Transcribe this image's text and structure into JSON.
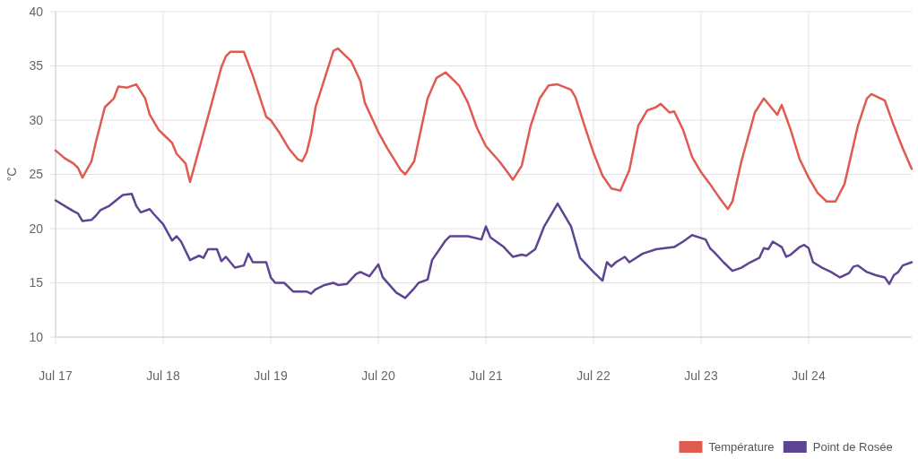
{
  "chart_data": {
    "type": "line",
    "ylabel": "°C",
    "x": [
      "--07-17T00:00",
      "--07-17T02:00",
      "--07-17T04:00",
      "--07-17T05:00",
      "--07-17T06:00",
      "--07-17T08:00",
      "--07-17T09:00",
      "--07-17T11:00",
      "--07-17T13:00",
      "--07-17T14:00",
      "--07-17T16:00",
      "--07-17T18:00",
      "--07-17T20:00",
      "--07-17T21:00",
      "--07-17T23:00",
      "--07-18T00:00",
      "--07-18T02:00",
      "--07-18T03:00",
      "--07-18T05:00",
      "--07-18T06:00",
      "--07-18T07:00",
      "--07-18T10:00",
      "--07-18T13:00",
      "--07-18T14:00",
      "--07-18T15:00",
      "--07-18T18:00",
      "--07-18T20:00",
      "--07-18T23:00",
      "--07-19T00:00",
      "--07-19T02:00",
      "--07-19T04:00",
      "--07-19T06:00",
      "--07-19T07:00",
      "--07-19T08:00",
      "--07-19T09:00",
      "--07-19T10:00",
      "--07-19T14:00",
      "--07-19T15:00",
      "--07-19T18:00",
      "--07-19T20:00",
      "--07-19T21:00",
      "--07-20T00:00",
      "--07-20T02:00",
      "--07-20T05:00",
      "--07-20T06:00",
      "--07-20T08:00",
      "--07-20T11:00",
      "--07-20T13:00",
      "--07-20T15:00",
      "--07-20T18:00",
      "--07-20T20:00",
      "--07-20T22:00",
      "--07-21T00:00",
      "--07-21T03:00",
      "--07-21T05:00",
      "--07-21T06:00",
      "--07-21T08:00",
      "--07-21T10:00",
      "--07-21T12:00",
      "--07-21T14:00",
      "--07-21T16:00",
      "--07-21T19:00",
      "--07-21T20:00",
      "--07-21T22:00",
      "--07-22T00:00",
      "--07-22T02:00",
      "--07-22T04:00",
      "--07-22T06:00",
      "--07-22T08:00",
      "--07-22T10:00",
      "--07-22T12:00",
      "--07-22T14:00",
      "--07-22T15:00",
      "--07-22T17:00",
      "--07-22T18:00",
      "--07-22T20:00",
      "--07-22T22:00",
      "--07-23T00:00",
      "--07-23T02:00",
      "--07-23T04:00",
      "--07-23T06:00",
      "--07-23T07:00",
      "--07-23T09:00",
      "--07-23T12:00",
      "--07-23T14:00",
      "--07-23T17:00",
      "--07-23T18:00",
      "--07-23T20:00",
      "--07-23T22:00",
      "--07-24T00:00",
      "--07-24T02:00",
      "--07-24T04:00",
      "--07-24T06:00",
      "--07-24T08:00",
      "--07-24T11:00",
      "--07-24T13:00",
      "--07-24T14:00",
      "--07-24T17:00",
      "--07-24T19:00",
      "--07-24T21:00",
      "--07-24T23:00"
    ],
    "series": [
      {
        "name": "Température",
        "color": "#e05a4f",
        "values": [
          27.2,
          26.5,
          26.0,
          25.6,
          24.7,
          26.2,
          28.0,
          31.2,
          32.0,
          33.1,
          33.0,
          33.3,
          32.0,
          30.5,
          29.1,
          28.7,
          27.9,
          26.9,
          26.0,
          24.3,
          25.8,
          30.3,
          34.9,
          35.9,
          36.3,
          36.3,
          34.1,
          30.3,
          30.0,
          28.8,
          27.4,
          26.4,
          26.2,
          27.0,
          28.7,
          31.2,
          36.4,
          36.6,
          35.4,
          33.6,
          31.6,
          28.9,
          27.4,
          25.4,
          25.0,
          26.2,
          32.0,
          33.9,
          34.4,
          33.2,
          31.6,
          29.3,
          27.6,
          26.2,
          25.1,
          24.5,
          25.8,
          29.5,
          32.0,
          33.2,
          33.3,
          32.8,
          32.1,
          29.5,
          27.0,
          24.9,
          23.7,
          23.5,
          25.4,
          29.5,
          30.9,
          31.2,
          31.5,
          30.7,
          30.8,
          29.1,
          26.6,
          25.2,
          24.1,
          22.9,
          21.8,
          22.5,
          26.2,
          30.7,
          32.0,
          30.5,
          31.4,
          29.1,
          26.4,
          24.7,
          23.3,
          22.5,
          22.5,
          24.1,
          29.5,
          32.0,
          32.4,
          31.8,
          29.5,
          27.4,
          25.5
        ]
      },
      {
        "name": "Point de Rosée",
        "color": "#5e4593",
        "x": [
          "--07-17T00:00",
          "--07-17T02:00",
          "--07-17T04:00",
          "--07-17T05:00",
          "--07-17T06:00",
          "--07-17T08:00",
          "--07-17T09:00",
          "--07-17T10:00",
          "--07-17T12:00",
          "--07-17T15:00",
          "--07-17T17:00",
          "--07-17T18:00",
          "--07-17T19:00",
          "--07-17T21:00",
          "--07-17T22:00",
          "--07-18T00:00",
          "--07-18T02:00",
          "--07-18T03:00",
          "--07-18T04:00",
          "--07-18T06:00",
          "--07-18T08:00",
          "--07-18T09:00",
          "--07-18T10:00",
          "--07-18T12:00",
          "--07-18T13:00",
          "--07-18T14:00",
          "--07-18T16:00",
          "--07-18T18:00",
          "--07-18T19:00",
          "--07-18T20:00",
          "--07-18T23:00",
          "--07-19T00:00",
          "--07-19T01:00",
          "--07-19T03:00",
          "--07-19T05:00",
          "--07-19T08:00",
          "--07-19T09:00",
          "--07-19T10:00",
          "--07-19T12:00",
          "--07-19T14:00",
          "--07-19T15:00",
          "--07-19T17:00",
          "--07-19T19:00",
          "--07-19T20:00",
          "--07-19T22:00",
          "--07-20T00:00",
          "--07-20T01:00",
          "--07-20T04:00",
          "--07-20T06:00",
          "--07-20T08:00",
          "--07-20T09:00",
          "--07-20T11:00",
          "--07-20T12:00",
          "--07-20T15:00",
          "--07-20T16:00",
          "--07-20T20:00",
          "--07-20T23:00",
          "--07-21T00:00",
          "--07-21T01:00",
          "--07-21T04:00",
          "--07-21T06:00",
          "--07-21T08:00",
          "--07-21T09:00",
          "--07-21T11:00",
          "--07-21T13:00",
          "--07-21T16:00",
          "--07-21T19:00",
          "--07-21T21:00",
          "--07-22T00:00",
          "--07-22T02:00",
          "--07-22T03:00",
          "--07-22T04:00",
          "--07-22T05:00",
          "--07-22T07:00",
          "--07-22T08:00",
          "--07-22T11:00",
          "--07-22T14:00",
          "--07-22T18:00",
          "--07-22T20:00",
          "--07-22T22:00",
          "--07-23T01:00",
          "--07-23T02:00",
          "--07-23T03:00",
          "--07-23T05:00",
          "--07-23T07:00",
          "--07-23T09:00",
          "--07-23T11:00",
          "--07-23T13:00",
          "--07-23T14:00",
          "--07-23T15:00",
          "--07-23T16:00",
          "--07-23T18:00",
          "--07-23T19:00",
          "--07-23T20:00",
          "--07-23T22:00",
          "--07-23T23:00",
          "--07-24T00:00",
          "--07-24T01:00",
          "--07-24T03:00",
          "--07-24T05:00",
          "--07-24T07:00",
          "--07-24T09:00",
          "--07-24T10:00",
          "--07-24T11:00",
          "--07-24T13:00",
          "--07-24T15:00",
          "--07-24T17:00",
          "--07-24T18:00",
          "--07-24T19:00",
          "--07-24T20:00",
          "--07-24T21:00",
          "--07-24T23:00"
        ],
        "values": [
          22.6,
          22.1,
          21.6,
          21.4,
          20.7,
          20.8,
          21.2,
          21.7,
          22.1,
          23.1,
          23.2,
          22.1,
          21.5,
          21.8,
          21.3,
          20.4,
          18.9,
          19.3,
          18.8,
          17.1,
          17.5,
          17.3,
          18.1,
          18.1,
          17.0,
          17.4,
          16.4,
          16.6,
          17.7,
          16.9,
          16.9,
          15.5,
          15.0,
          15.0,
          14.2,
          14.2,
          14.0,
          14.4,
          14.8,
          15.0,
          14.8,
          14.9,
          15.8,
          16.0,
          15.6,
          16.7,
          15.5,
          14.1,
          13.6,
          14.5,
          15.0,
          15.3,
          17.1,
          18.9,
          19.3,
          19.3,
          19.0,
          20.2,
          19.2,
          18.3,
          17.4,
          17.6,
          17.5,
          18.1,
          20.2,
          22.3,
          20.2,
          17.3,
          16.0,
          15.2,
          16.9,
          16.5,
          16.9,
          17.4,
          16.9,
          17.7,
          18.1,
          18.3,
          18.8,
          19.4,
          19.0,
          18.2,
          17.8,
          16.9,
          16.1,
          16.4,
          16.9,
          17.3,
          18.2,
          18.1,
          18.8,
          18.3,
          17.4,
          17.6,
          18.3,
          18.5,
          18.2,
          16.9,
          16.4,
          16.0,
          15.5,
          15.9,
          16.5,
          16.6,
          16.0,
          15.7,
          15.5,
          14.9,
          15.7,
          16.0,
          16.6,
          16.9
        ]
      }
    ],
    "xlim": [
      "--07-17T00:00",
      "--07-24T23:00"
    ],
    "xticks": [
      {
        "value": "--07-17",
        "label": "Jul 17"
      },
      {
        "value": "--07-18",
        "label": "Jul 18"
      },
      {
        "value": "--07-19",
        "label": "Jul 19"
      },
      {
        "value": "--07-20",
        "label": "Jul 20"
      },
      {
        "value": "--07-21",
        "label": "Jul 21"
      },
      {
        "value": "--07-22",
        "label": "Jul 22"
      },
      {
        "value": "--07-23",
        "label": "Jul 23"
      },
      {
        "value": "--07-24",
        "label": "Jul 24"
      }
    ],
    "ylim": [
      10,
      40
    ],
    "yticks": [
      10,
      15,
      20,
      25,
      30,
      35,
      40
    ],
    "grid": true,
    "legend": "bottom right"
  }
}
